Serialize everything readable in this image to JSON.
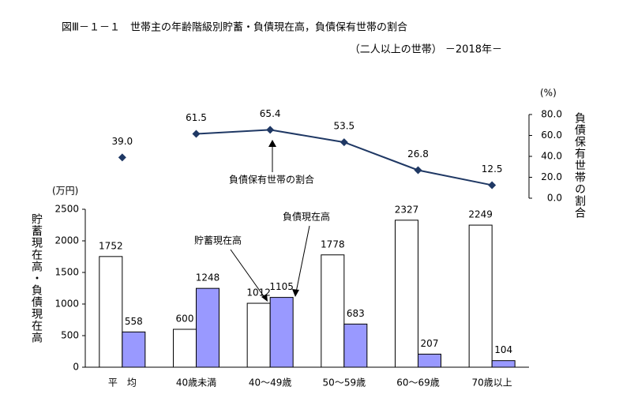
{
  "chart_data": {
    "type": "bar",
    "title": "図Ⅲ－１－１　世帯主の年齢階級別貯蓄・負債現在高，負債保有世帯の割合",
    "subtitle": "（二人以上の世帯） －2018年－",
    "y_unit": "(万円)",
    "y_label": "貯蓄現在高・負債現在高",
    "y2_unit": "(%)",
    "y2_label": "負債保有世帯の割合",
    "categories": [
      "平　均",
      "40歳未満",
      "40～49歳",
      "50～59歳",
      "60～69歳",
      "70歳以上"
    ],
    "ylim": [
      0,
      2500
    ],
    "yticks": [
      0,
      500,
      1000,
      1500,
      2000,
      2500
    ],
    "y2lim": [
      0,
      80
    ],
    "y2ticks": [
      {
        "value": 0,
        "label": "0.0"
      },
      {
        "value": 20,
        "label": "20.0"
      },
      {
        "value": 40,
        "label": "40.0"
      },
      {
        "value": 60,
        "label": "60.0"
      },
      {
        "value": 80,
        "label": "80.0"
      }
    ],
    "series": [
      {
        "name": "貯蓄現在高",
        "type": "bar",
        "color": "#ffffff",
        "values": [
          1752,
          600,
          1012,
          1778,
          2327,
          2249
        ]
      },
      {
        "name": "負債現在高",
        "type": "bar",
        "color": "#9999ff",
        "values": [
          558,
          1248,
          1105,
          683,
          207,
          104
        ]
      },
      {
        "name": "負債保有世帯の割合",
        "type": "line",
        "axis": "y2",
        "color": "#1f3864",
        "values": [
          39.0,
          61.5,
          65.4,
          53.5,
          26.8,
          12.5
        ],
        "value_labels": [
          "39.0",
          "61.5",
          "65.4",
          "53.5",
          "26.8",
          "12.5"
        ]
      }
    ]
  }
}
